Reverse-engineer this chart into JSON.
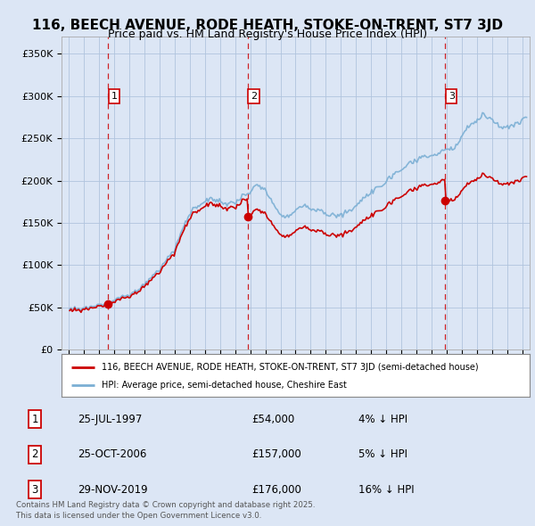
{
  "title": "116, BEECH AVENUE, RODE HEATH, STOKE-ON-TRENT, ST7 3JD",
  "subtitle": "Price paid vs. HM Land Registry's House Price Index (HPI)",
  "bg_color": "#dce6f5",
  "plot_bg_color": "#dce6f5",
  "grid_color": "#b0c4de",
  "sale_color": "#cc0000",
  "hpi_color": "#7bafd4",
  "sale_dates": [
    1997.57,
    2006.82,
    2019.91
  ],
  "sale_prices": [
    54000,
    157000,
    176000
  ],
  "sale_labels": [
    "1",
    "2",
    "3"
  ],
  "legend_sale": "116, BEECH AVENUE, RODE HEATH, STOKE-ON-TRENT, ST7 3JD (semi-detached house)",
  "legend_hpi": "HPI: Average price, semi-detached house, Cheshire East",
  "table_rows": [
    [
      "1",
      "25-JUL-1997",
      "£54,000",
      "4% ↓ HPI"
    ],
    [
      "2",
      "25-OCT-2006",
      "£157,000",
      "5% ↓ HPI"
    ],
    [
      "3",
      "29-NOV-2019",
      "£176,000",
      "16% ↓ HPI"
    ]
  ],
  "footnote": "Contains HM Land Registry data © Crown copyright and database right 2025.\nThis data is licensed under the Open Government Licence v3.0.",
  "ylim": [
    0,
    370000
  ],
  "yticks": [
    0,
    50000,
    100000,
    150000,
    200000,
    250000,
    300000,
    350000
  ],
  "xlim": [
    1994.5,
    2025.5
  ]
}
